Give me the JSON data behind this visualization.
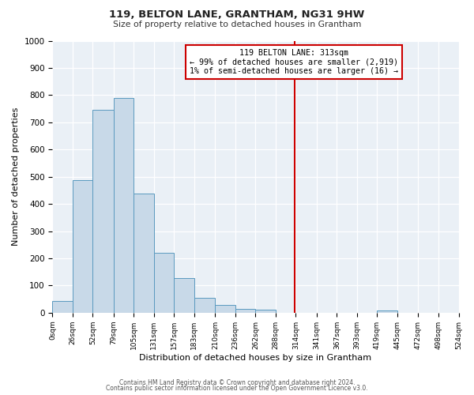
{
  "title": "119, BELTON LANE, GRANTHAM, NG31 9HW",
  "subtitle": "Size of property relative to detached houses in Grantham",
  "xlabel": "Distribution of detached houses by size in Grantham",
  "ylabel": "Number of detached properties",
  "bar_edges": [
    0,
    26,
    52,
    79,
    105,
    131,
    157,
    183,
    210,
    236,
    262,
    288,
    314,
    341,
    367,
    393,
    419,
    445,
    472,
    498,
    524
  ],
  "bar_heights": [
    43,
    487,
    747,
    790,
    437,
    221,
    127,
    54,
    28,
    14,
    10,
    0,
    0,
    0,
    0,
    0,
    8,
    0,
    0,
    0
  ],
  "bar_color": "#c8d9e8",
  "bar_edgecolor": "#5a9abf",
  "property_line_x": 313,
  "property_line_color": "#cc0000",
  "annotation_title": "119 BELTON LANE: 313sqm",
  "annotation_line1": "← 99% of detached houses are smaller (2,919)",
  "annotation_line2": "1% of semi-detached houses are larger (16) →",
  "annotation_box_color": "#cc0000",
  "ylim": [
    0,
    1000
  ],
  "yticks": [
    0,
    100,
    200,
    300,
    400,
    500,
    600,
    700,
    800,
    900,
    1000
  ],
  "tick_labels": [
    "0sqm",
    "26sqm",
    "52sqm",
    "79sqm",
    "105sqm",
    "131sqm",
    "157sqm",
    "183sqm",
    "210sqm",
    "236sqm",
    "262sqm",
    "288sqm",
    "314sqm",
    "341sqm",
    "367sqm",
    "393sqm",
    "419sqm",
    "445sqm",
    "472sqm",
    "498sqm",
    "524sqm"
  ],
  "footer1": "Contains HM Land Registry data © Crown copyright and database right 2024.",
  "footer2": "Contains public sector information licensed under the Open Government Licence v3.0.",
  "plot_bg_color": "#eaf0f6",
  "fig_bg_color": "#ffffff"
}
